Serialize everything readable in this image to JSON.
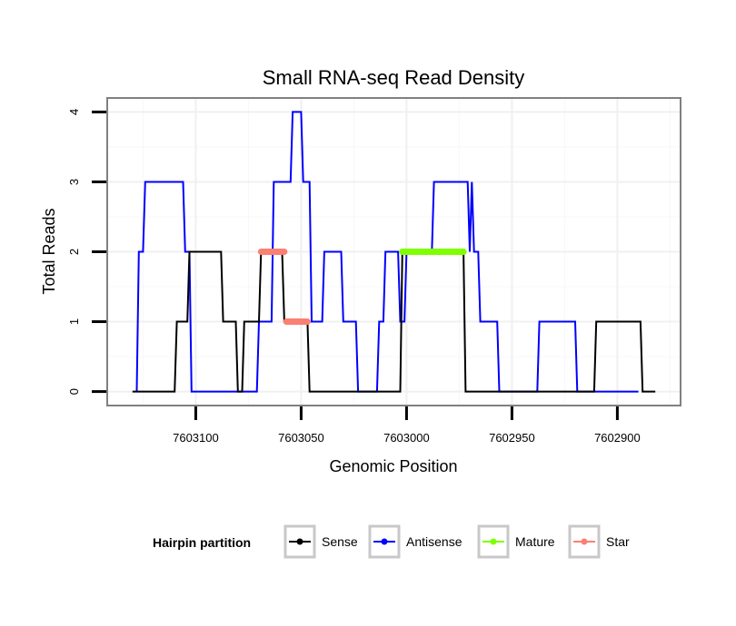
{
  "chart_data": {
    "type": "line",
    "title": "Small RNA-seq Read Density",
    "xlabel": "Genomic Position",
    "ylabel": "Total Reads",
    "x_reversed": true,
    "xlim": [
      7603142,
      7602870
    ],
    "ylim": [
      -0.2,
      4.2
    ],
    "x_ticks": [
      7603100,
      7603050,
      7603000,
      7602950,
      7602900
    ],
    "y_ticks": [
      0,
      1,
      2,
      3,
      4
    ],
    "x_tick_labels": [
      "7603100",
      "7603050",
      "7603000",
      "7602950",
      "7602900"
    ],
    "y_tick_labels": [
      "0",
      "1",
      "2",
      "3",
      "4"
    ],
    "grid": true,
    "series": [
      {
        "name": "Sense",
        "color": "#000000",
        "points": [
          [
            7603130,
            0
          ],
          [
            7603110,
            0
          ],
          [
            7603109,
            1
          ],
          [
            7603104,
            1
          ],
          [
            7603103,
            2
          ],
          [
            7603088,
            2
          ],
          [
            7603087,
            1
          ],
          [
            7603081,
            1
          ],
          [
            7603080,
            0
          ],
          [
            7603078,
            0
          ],
          [
            7603077,
            1
          ],
          [
            7603070,
            1
          ],
          [
            7603069,
            2
          ],
          [
            7603059,
            2
          ],
          [
            7603058,
            1
          ],
          [
            7603047,
            1
          ],
          [
            7603046,
            0
          ],
          [
            7603003,
            0
          ],
          [
            7603002,
            2
          ],
          [
            7602973,
            2
          ],
          [
            7602972,
            0
          ],
          [
            7602911,
            0
          ],
          [
            7602910,
            1
          ],
          [
            7602889,
            1
          ],
          [
            7602888,
            0
          ],
          [
            7602882,
            0
          ]
        ]
      },
      {
        "name": "Antisense",
        "color": "#0000ff",
        "points": [
          [
            7603128,
            0
          ],
          [
            7603127,
            2
          ],
          [
            7603125,
            2
          ],
          [
            7603124,
            3
          ],
          [
            7603106,
            3
          ],
          [
            7603105,
            2
          ],
          [
            7603103,
            2
          ],
          [
            7603102,
            0
          ],
          [
            7603080,
            0
          ],
          [
            7603071,
            0
          ],
          [
            7603070,
            1
          ],
          [
            7603064,
            1
          ],
          [
            7603063,
            3
          ],
          [
            7603055,
            3
          ],
          [
            7603054,
            4
          ],
          [
            7603050,
            4
          ],
          [
            7603049,
            3
          ],
          [
            7603046,
            3
          ],
          [
            7603045,
            1
          ],
          [
            7603040,
            1
          ],
          [
            7603039,
            2
          ],
          [
            7603031,
            2
          ],
          [
            7603030,
            1
          ],
          [
            7603024,
            1
          ],
          [
            7603023,
            0
          ],
          [
            7603014,
            0
          ],
          [
            7603013,
            1
          ],
          [
            7603011,
            1
          ],
          [
            7603010,
            2
          ],
          [
            7603004,
            2
          ],
          [
            7603003,
            1
          ],
          [
            7603001,
            1
          ],
          [
            7603000,
            2
          ],
          [
            7602988,
            2
          ],
          [
            7602987,
            3
          ],
          [
            7602971,
            3
          ],
          [
            7602970,
            2
          ],
          [
            7602969,
            3
          ],
          [
            7602968,
            2
          ],
          [
            7602966,
            2
          ],
          [
            7602965,
            1
          ],
          [
            7602957,
            1
          ],
          [
            7602956,
            0
          ],
          [
            7602938,
            0
          ],
          [
            7602937,
            1
          ],
          [
            7602920,
            1
          ],
          [
            7602919,
            0
          ],
          [
            7602890,
            0
          ]
        ]
      },
      {
        "name": "Mature",
        "color": "#7fff00",
        "points": [
          [
            7603002,
            2
          ],
          [
            7602973,
            2
          ]
        ]
      },
      {
        "name": "Star",
        "color": "#fa8072",
        "points": [
          [
            7603069,
            2
          ],
          [
            7603058,
            2
          ],
          [
            7603058,
            1
          ],
          [
            7603047,
            1
          ]
        ]
      }
    ],
    "overlay_segments": [
      {
        "series": "Mature",
        "x_start": 7603002,
        "x_end": 7602973,
        "y": 2
      },
      {
        "series": "Star",
        "x_start": 7603069,
        "x_end": 7603058,
        "y": 2
      },
      {
        "series": "Star",
        "x_start": 7603057,
        "x_end": 7603047,
        "y": 1
      }
    ],
    "legend": {
      "title": "Hairpin partition",
      "position": "bottom",
      "entries": [
        "Sense",
        "Antisense",
        "Mature",
        "Star"
      ]
    }
  }
}
